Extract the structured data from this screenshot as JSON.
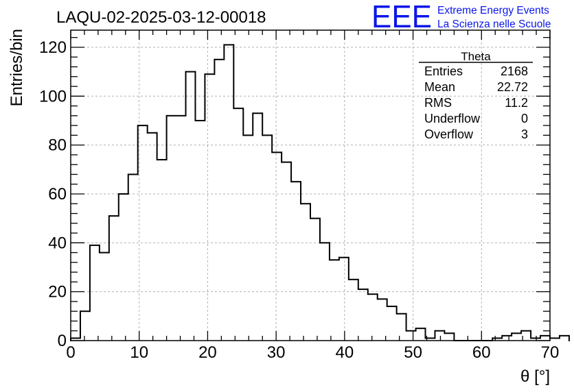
{
  "colors": {
    "histogram": "#000000",
    "grid": "#b0b0b0",
    "logo": "#0b16e8",
    "background": "#ffffff"
  },
  "logo": {
    "mark": "EEE",
    "line1": "Extreme Energy Events",
    "line2": "La Scienza nelle Scuole"
  },
  "stats": {
    "title": "Theta",
    "rows": [
      {
        "label": "Entries",
        "value": "2168"
      },
      {
        "label": "Mean",
        "value": "22.72"
      },
      {
        "label": "RMS",
        "value": "11.2"
      },
      {
        "label": "Underflow",
        "value": "0"
      },
      {
        "label": "Overflow",
        "value": "3"
      }
    ]
  },
  "chart_data": {
    "type": "bar",
    "title": "LAQU-02-2025-03-12-00018",
    "xlabel": "θ [°]",
    "ylabel": "Entries/bin",
    "xlim": [
      0,
      70
    ],
    "ylim": [
      0,
      127
    ],
    "xticks": [
      0,
      10,
      20,
      30,
      40,
      50,
      60,
      70
    ],
    "yticks": [
      0,
      20,
      40,
      60,
      80,
      100,
      120
    ],
    "grid": true,
    "bin_width": 1.4,
    "bin_start": 0,
    "values": [
      1,
      12,
      39,
      36,
      51,
      60,
      68,
      88,
      85,
      74,
      92,
      92,
      110,
      90,
      109,
      115,
      121,
      95,
      84,
      93,
      84,
      77,
      73,
      65,
      56,
      50,
      40,
      33,
      34,
      25,
      21,
      19,
      17,
      14,
      11,
      4,
      5,
      1,
      4,
      3,
      0,
      0,
      0,
      0,
      1,
      2,
      3,
      4,
      1,
      2,
      1,
      2
    ],
    "legend": "top-right"
  }
}
